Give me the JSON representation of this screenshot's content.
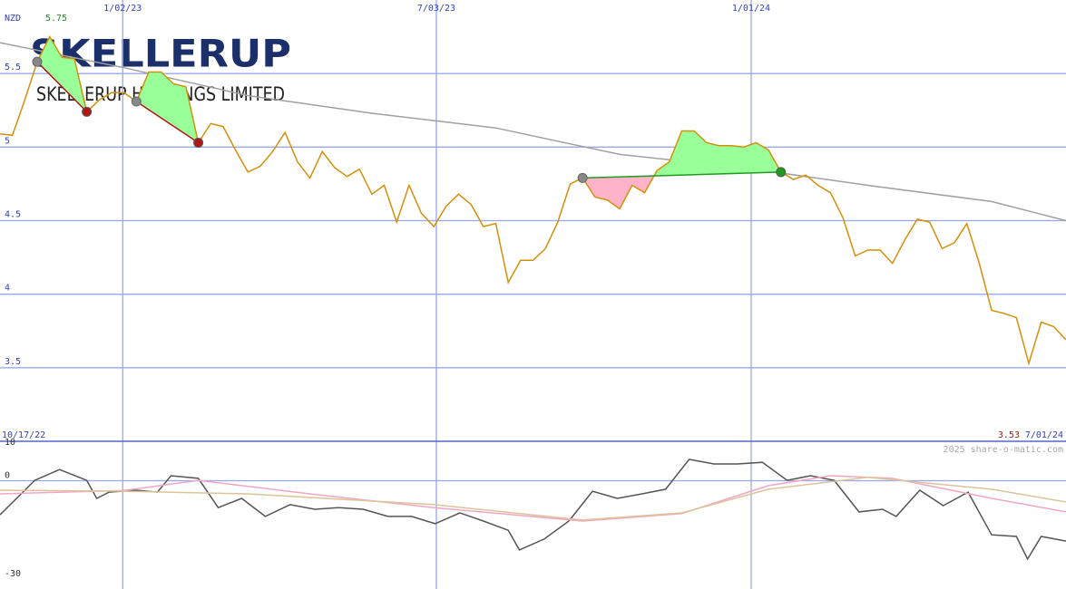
{
  "chart_data": {
    "type": "line",
    "currency": "NZD",
    "logo": {
      "name": "SKELLERUP",
      "subtitle": "SKELLERUP HOLDINGS LIMITED"
    },
    "credit": "2025 share-o-matic.com",
    "range_labels": [
      "10/17/22",
      "7/01/24"
    ],
    "xlim": [
      0,
      86
    ],
    "xticks": [
      {
        "value": 9.9,
        "label": "1/02/23"
      },
      {
        "value": 35.2,
        "label": "7/03/23"
      },
      {
        "value": 60.6,
        "label": "1/01/24"
      }
    ],
    "ylim": [
      3,
      6
    ],
    "yticks": [
      3.5,
      4,
      4.5,
      5,
      5.5
    ],
    "grid": true,
    "series": [
      {
        "color": "#d4900a",
        "x": [
          0,
          1,
          2,
          3,
          4,
          5,
          6,
          7,
          8,
          9,
          10,
          11,
          12,
          13,
          14,
          15,
          16,
          17,
          18,
          19,
          20,
          21,
          22,
          23,
          24,
          25,
          26,
          27,
          28,
          29,
          30,
          31,
          32,
          33,
          34,
          35,
          36,
          37,
          38,
          39,
          40,
          41,
          42,
          43,
          44,
          45,
          46,
          47,
          48,
          49,
          50,
          51,
          52,
          53,
          54,
          55,
          56,
          57,
          58,
          59,
          60,
          61,
          62,
          63,
          64,
          65,
          66,
          67,
          68,
          69,
          70,
          71,
          72,
          73,
          74,
          75,
          76,
          77,
          78,
          79,
          80,
          81,
          82,
          83,
          84,
          85,
          86
        ],
        "values": [
          5.09,
          5.08,
          5.32,
          5.58,
          5.75,
          5.61,
          5.6,
          5.24,
          5.32,
          5.37,
          5.37,
          5.31,
          5.51,
          5.51,
          5.43,
          5.41,
          5.03,
          5.16,
          5.14,
          4.98,
          4.83,
          4.87,
          4.97,
          5.1,
          4.9,
          4.79,
          4.97,
          4.86,
          4.8,
          4.85,
          4.68,
          4.74,
          4.49,
          4.74,
          4.55,
          4.46,
          4.6,
          4.68,
          4.61,
          4.46,
          4.48,
          4.08,
          4.23,
          4.23,
          4.31,
          4.49,
          4.75,
          4.79,
          4.66,
          4.64,
          4.58,
          4.74,
          4.69,
          4.84,
          4.9,
          5.11,
          5.11,
          5.03,
          5.01,
          5.01,
          5.0,
          5.03,
          4.98,
          4.83,
          4.78,
          4.81,
          4.74,
          4.69,
          4.52,
          4.26,
          4.3,
          4.3,
          4.21,
          4.37,
          4.51,
          4.49,
          4.31,
          4.35,
          4.48,
          4.21,
          3.89,
          3.87,
          3.84,
          3.53,
          3.81,
          3.78,
          3.69
        ]
      },
      {
        "color": "#a0a0a0",
        "x": [
          0,
          10,
          20,
          30,
          40,
          50,
          60,
          70,
          80,
          86
        ],
        "values": [
          5.71,
          5.54,
          5.35,
          5.23,
          5.13,
          4.95,
          4.86,
          4.74,
          4.63,
          4.5
        ]
      }
    ],
    "signals": [
      {
        "start": 3,
        "end": 7,
        "color": "#b01818"
      },
      {
        "start": 11,
        "end": 16,
        "color": "#b01818"
      },
      {
        "start": 47,
        "end": 63,
        "color": "#1f9a1f"
      }
    ],
    "indicator": {
      "ylim": [
        -33,
        12
      ],
      "yticks": [
        10,
        0,
        -30
      ],
      "series": [
        {
          "color": "#555555",
          "x": [
            0,
            2.8,
            4.8,
            7.0,
            7.8,
            8.8,
            11.0,
            12.7,
            13.8,
            16.0,
            17.6,
            19.5,
            21.4,
            23.4,
            25.4,
            27.3,
            29.3,
            31.3,
            33.2,
            35.1,
            37.1,
            39.0,
            41.0,
            41.9,
            43.9,
            45.9,
            47.8,
            49.8,
            51.8,
            53.7,
            55.6,
            57.6,
            59.5,
            61.5,
            63.5,
            65.4,
            67.3,
            69.3,
            71.2,
            72.3,
            74.2,
            76.1,
            78.1,
            80.0,
            82.0,
            82.9,
            84.0,
            86.0
          ],
          "values": [
            -10.4,
            0.1,
            3.4,
            0.1,
            -5.4,
            -3.5,
            -2.9,
            -3.5,
            1.5,
            0.7,
            -8.2,
            -5.4,
            -10.9,
            -7.3,
            -8.7,
            -8.2,
            -8.7,
            -10.9,
            -10.9,
            -13.1,
            -9.8,
            -12.3,
            -15.1,
            -21.1,
            -17.8,
            -12.3,
            -3.2,
            -5.4,
            -4.0,
            -2.6,
            6.5,
            5.1,
            5.1,
            5.6,
            0.1,
            1.5,
            0.1,
            -9.5,
            -8.7,
            -10.9,
            -2.9,
            -7.6,
            -3.5,
            -16.5,
            -17.0,
            -23.9,
            -17.0,
            -18.4
          ]
        },
        {
          "color": "#f2a6c4",
          "x": [
            0,
            10,
            16,
            25,
            35,
            47,
            55,
            62,
            67,
            72,
            80,
            86
          ],
          "values": [
            -4.0,
            -3.0,
            0.1,
            -4.0,
            -8.2,
            -12.3,
            -10.0,
            -1.5,
            1.5,
            0.7,
            -5.4,
            -9.5
          ]
        },
        {
          "color": "#dcc49a",
          "x": [
            0,
            10,
            20,
            35,
            47,
            55,
            62,
            70,
            80,
            86
          ],
          "values": [
            -2.9,
            -3.2,
            -4.0,
            -7.3,
            -12.0,
            -9.8,
            -2.6,
            1.0,
            -2.6,
            -6.5
          ]
        }
      ]
    }
  }
}
